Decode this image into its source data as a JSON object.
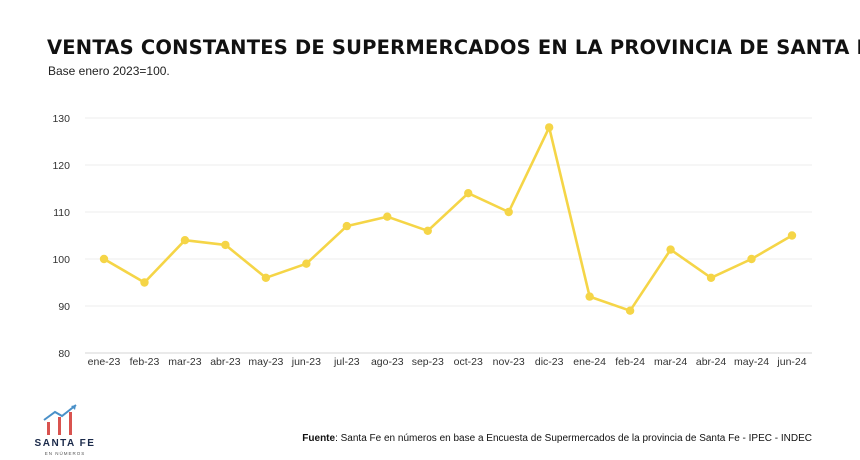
{
  "header": {
    "title": "VENTAS CONSTANTES DE SUPERMERCADOS EN LA PROVINCIA DE SANTA FE",
    "subtitle": "Base enero 2023=100."
  },
  "chart_data": {
    "type": "line",
    "title": "VENTAS CONSTANTES DE SUPERMERCADOS EN LA PROVINCIA DE SANTA FE",
    "subtitle": "Base enero 2023=100.",
    "xlabel": "",
    "ylabel": "",
    "categories": [
      "ene-23",
      "feb-23",
      "mar-23",
      "abr-23",
      "may-23",
      "jun-23",
      "jul-23",
      "ago-23",
      "sep-23",
      "oct-23",
      "nov-23",
      "dic-23",
      "ene-24",
      "feb-24",
      "mar-24",
      "abr-24",
      "may-24",
      "jun-24"
    ],
    "series": [
      {
        "values": [
          100,
          95,
          104,
          103,
          96,
          99,
          107,
          109,
          106,
          114,
          110,
          128,
          92,
          89,
          102,
          96,
          100,
          105
        ]
      }
    ],
    "ylim": [
      80,
      130
    ],
    "yticks": [
      80,
      90,
      100,
      110,
      120,
      130
    ],
    "grid": true,
    "legend": "none",
    "color": "#F5D547",
    "gridColor": "#ececec"
  },
  "footer": {
    "source_label": "Fuente",
    "source_text": ": Santa Fe en números en base a Encuesta de Supermercados de la provincia de Santa Fe - IPEC - INDEC",
    "logo_name": "SANTA FE",
    "logo_sub": "EN NÚMEROS",
    "logo_icon": "bar-chart-arrow-icon"
  }
}
